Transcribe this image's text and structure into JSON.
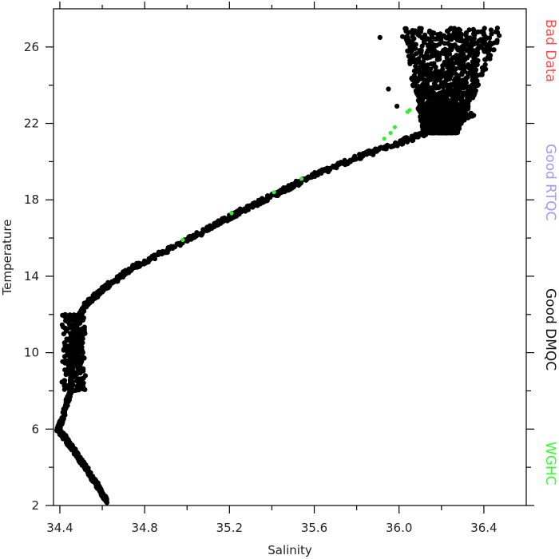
{
  "chart_data": {
    "type": "scatter",
    "xlabel": "Salinity",
    "ylabel": "Temperature",
    "xlim": [
      34.37,
      36.6
    ],
    "ylim": [
      2,
      28
    ],
    "x_ticks": [
      "34.4",
      "34.8",
      "35.2",
      "35.6",
      "36.0",
      "36.4"
    ],
    "y_ticks": [
      "2",
      "6",
      "10",
      "14",
      "18",
      "22",
      "26"
    ],
    "legend_position": "right",
    "legend": [
      {
        "label": "Bad Data",
        "color": "#ff4d4d"
      },
      {
        "label": "Good RTQC",
        "color": "#9a9aff"
      },
      {
        "label": "Good DMQC",
        "color": "#111111"
      },
      {
        "label": "WGHC",
        "color": "#33ff33"
      }
    ],
    "series": [
      {
        "name": "Good DMQC",
        "color": "#000000",
        "curve": [
          {
            "x": 34.62,
            "y": 2.2
          },
          {
            "x": 34.58,
            "y": 3.0
          },
          {
            "x": 34.52,
            "y": 4.0
          },
          {
            "x": 34.46,
            "y": 5.0
          },
          {
            "x": 34.42,
            "y": 5.6
          },
          {
            "x": 34.39,
            "y": 6.0
          },
          {
            "x": 34.41,
            "y": 6.5
          },
          {
            "x": 34.45,
            "y": 8.0
          },
          {
            "x": 34.46,
            "y": 10.0
          },
          {
            "x": 34.47,
            "y": 11.5
          },
          {
            "x": 34.52,
            "y": 12.5
          },
          {
            "x": 34.6,
            "y": 13.3
          },
          {
            "x": 34.75,
            "y": 14.5
          },
          {
            "x": 35.0,
            "y": 15.9
          },
          {
            "x": 35.2,
            "y": 17.1
          },
          {
            "x": 35.4,
            "y": 18.2
          },
          {
            "x": 35.6,
            "y": 19.3
          },
          {
            "x": 35.8,
            "y": 20.2
          },
          {
            "x": 36.0,
            "y": 21.0
          },
          {
            "x": 36.2,
            "y": 21.8
          },
          {
            "x": 36.35,
            "y": 22.5
          }
        ],
        "clusters": [
          {
            "x_min": 34.41,
            "x_max": 34.53,
            "y_min": 8.0,
            "y_max": 12.0
          },
          {
            "x_min": 35.9,
            "x_max": 36.55,
            "y_min": 21.5,
            "y_max": 27.0
          }
        ],
        "outliers": [
          {
            "x": 35.91,
            "y": 26.5
          },
          {
            "x": 35.95,
            "y": 23.8
          },
          {
            "x": 35.99,
            "y": 22.9
          }
        ]
      },
      {
        "name": "WGHC",
        "color": "#33ee33",
        "points": [
          {
            "x": 34.98,
            "y": 15.9
          },
          {
            "x": 35.21,
            "y": 17.3
          },
          {
            "x": 35.41,
            "y": 18.4
          },
          {
            "x": 35.54,
            "y": 19.1
          },
          {
            "x": 35.93,
            "y": 21.2
          },
          {
            "x": 35.96,
            "y": 21.5
          },
          {
            "x": 35.98,
            "y": 21.8
          },
          {
            "x": 36.04,
            "y": 22.6
          },
          {
            "x": 36.05,
            "y": 22.7
          }
        ]
      }
    ]
  }
}
